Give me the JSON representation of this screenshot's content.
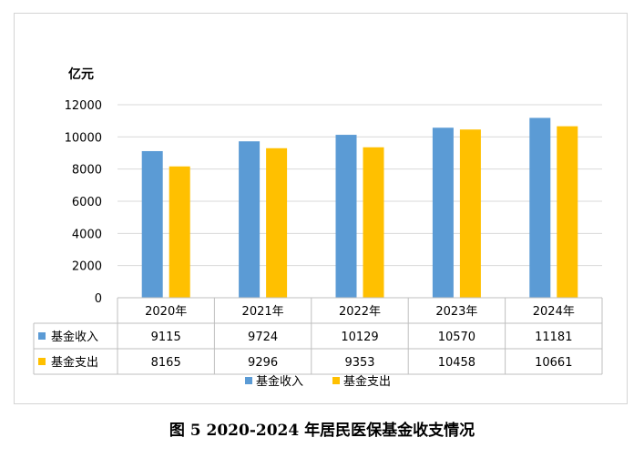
{
  "caption": "图 5   2020-2024 年居民医保基金收支情况",
  "chart_data": {
    "type": "bar",
    "unit_label": "亿元",
    "categories": [
      "2020年",
      "2021年",
      "2022年",
      "2023年",
      "2024年"
    ],
    "series": [
      {
        "name": "基金收入",
        "color": "#5b9bd5",
        "values": [
          9115,
          9724,
          10129,
          10570,
          11181
        ]
      },
      {
        "name": "基金支出",
        "color": "#ffc000",
        "values": [
          8165,
          9296,
          9353,
          10458,
          10661
        ]
      }
    ],
    "ylim": [
      0,
      12000
    ],
    "yticks": [
      0,
      2000,
      4000,
      6000,
      8000,
      10000,
      12000
    ],
    "grid": true,
    "data_table": true,
    "legend_position": "bottom"
  }
}
